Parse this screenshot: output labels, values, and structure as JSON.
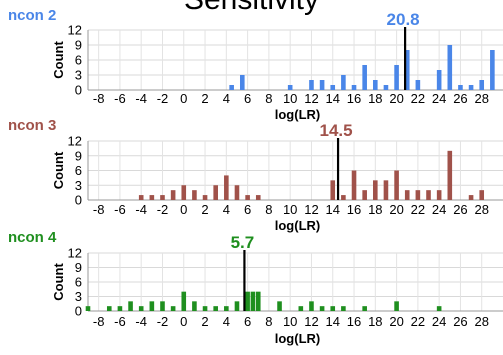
{
  "title": "Sensitivity",
  "chart_data": [
    {
      "type": "bar",
      "title": "ncon 2",
      "color": "#4a86e8",
      "xlabel": "log(LR)",
      "ylabel": "Count",
      "xlim": [
        -9,
        30
      ],
      "ylim": [
        0,
        12
      ],
      "xticks": [
        -8,
        -6,
        -4,
        -2,
        0,
        2,
        4,
        6,
        8,
        10,
        12,
        14,
        16,
        18,
        20,
        22,
        24,
        26,
        28
      ],
      "yticks": [
        0,
        3,
        6,
        9,
        12
      ],
      "grid": true,
      "marker": {
        "x": 20.8,
        "label": "20.8"
      },
      "x": [
        4.5,
        5.5,
        10,
        12,
        13,
        14,
        15,
        16,
        17,
        18,
        19,
        20,
        21,
        22,
        24,
        25,
        26,
        27,
        28,
        29
      ],
      "values": [
        1,
        3,
        1,
        2,
        2,
        1,
        3,
        1,
        5,
        2,
        1,
        5,
        8,
        2,
        4,
        9,
        1,
        1,
        2,
        8
      ]
    },
    {
      "type": "bar",
      "title": "ncon 3",
      "color": "#a0524a",
      "xlabel": "log(LR)",
      "ylabel": "Count",
      "xlim": [
        -9,
        30
      ],
      "ylim": [
        0,
        12
      ],
      "xticks": [
        -8,
        -6,
        -4,
        -2,
        0,
        2,
        4,
        6,
        8,
        10,
        12,
        14,
        16,
        18,
        20,
        22,
        24,
        26,
        28
      ],
      "yticks": [
        0,
        3,
        6,
        9,
        12
      ],
      "grid": true,
      "marker": {
        "x": 14.5,
        "label": "14.5"
      },
      "x": [
        -4,
        -3,
        -2,
        -1,
        0,
        1,
        2,
        3,
        4,
        5,
        6,
        7,
        14,
        15,
        16,
        17,
        18,
        19,
        20,
        21,
        22,
        23,
        24,
        25,
        27,
        28
      ],
      "values": [
        1,
        1,
        1,
        2,
        3,
        2,
        1,
        3,
        5,
        3,
        1,
        1,
        4,
        1,
        6,
        2,
        4,
        4,
        6,
        2,
        2,
        2,
        2,
        10,
        1,
        2
      ]
    },
    {
      "type": "bar",
      "title": "ncon 4",
      "color": "#1f8f1f",
      "xlabel": "log(LR)",
      "ylabel": "Count",
      "xlim": [
        -9,
        30
      ],
      "ylim": [
        0,
        12
      ],
      "xticks": [
        -8,
        -6,
        -4,
        -2,
        0,
        2,
        4,
        6,
        8,
        10,
        12,
        14,
        16,
        18,
        20,
        22,
        24,
        26,
        28
      ],
      "yticks": [
        0,
        3,
        6,
        9,
        12
      ],
      "grid": true,
      "marker": {
        "x": 5.7,
        "label": "5.7"
      },
      "x": [
        -9,
        -7,
        -6,
        -5,
        -4,
        -3,
        -2,
        -1,
        0,
        1,
        2,
        3,
        4,
        5,
        6,
        6.5,
        7,
        9,
        11,
        12,
        13,
        14,
        15,
        17,
        20,
        24
      ],
      "values": [
        1,
        1,
        1,
        2,
        1,
        2,
        2,
        1,
        4,
        2,
        1,
        1,
        1,
        2,
        4,
        4,
        4,
        2,
        1,
        2,
        1,
        1,
        1,
        1,
        2,
        1
      ]
    }
  ]
}
